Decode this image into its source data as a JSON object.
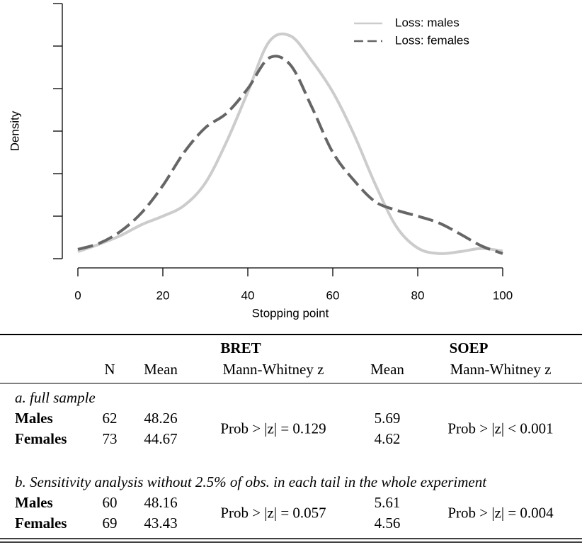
{
  "chart_data": {
    "type": "line",
    "x_label": "Stopping point",
    "y_label": "Density",
    "x": [
      0,
      5,
      10,
      15,
      20,
      25,
      30,
      35,
      40,
      45,
      50,
      55,
      60,
      65,
      70,
      75,
      80,
      85,
      90,
      95,
      100
    ],
    "series": [
      {
        "name": "Loss: males",
        "color": "#cccccc",
        "dash": "solid",
        "values": [
          0.00083,
          0.0017,
          0.0027,
          0.004,
          0.005,
          0.00625,
          0.0089,
          0.01375,
          0.0196,
          0.0255,
          0.0262,
          0.0233,
          0.0196,
          0.0146,
          0.00875,
          0.00375,
          0.00125,
          0.0006,
          0.00083,
          0.0012,
          0.0009
        ]
      },
      {
        "name": "Loss: females",
        "color": "#666666",
        "dash": "dashed",
        "values": [
          0.0011,
          0.0018,
          0.0032,
          0.0054,
          0.0086,
          0.0125,
          0.0154,
          0.0171,
          0.02,
          0.0236,
          0.0228,
          0.0179,
          0.0125,
          0.0092,
          0.0067,
          0.0057,
          0.005,
          0.0042,
          0.0029,
          0.0015,
          0.0006
        ]
      }
    ],
    "xlim": [
      0,
      100
    ],
    "xticks": [
      0,
      20,
      40,
      60,
      80,
      100
    ],
    "ylim": [
      0,
      0.03
    ],
    "yticks": [
      0,
      0.005,
      0.01,
      0.015,
      0.02,
      0.025,
      0.03
    ],
    "legend": "upper right",
    "grid": false
  },
  "table": {
    "groups": [
      "BRET",
      "SOEP"
    ],
    "columns": [
      "N",
      "Mean",
      "Mann-Whitney z",
      "Mean",
      "Mann-Whitney z"
    ],
    "sections": [
      {
        "title": "a. full sample",
        "rows": [
          [
            "Males",
            "62",
            "48.26",
            "5.69"
          ],
          [
            "Females",
            "73",
            "44.67",
            "4.62"
          ]
        ],
        "tests": [
          "Prob > |z| = 0.129",
          "Prob > |z| < 0.001"
        ]
      },
      {
        "title": "b. Sensitivity analysis without 2.5% of obs. in each tail in the whole experiment",
        "rows": [
          [
            "Males",
            "60",
            "48.16",
            "5.61"
          ],
          [
            "Females",
            "69",
            "43.43",
            "4.56"
          ]
        ],
        "tests": [
          "Prob > |z| = 0.057",
          "Prob > |z| = 0.004"
        ]
      }
    ]
  }
}
